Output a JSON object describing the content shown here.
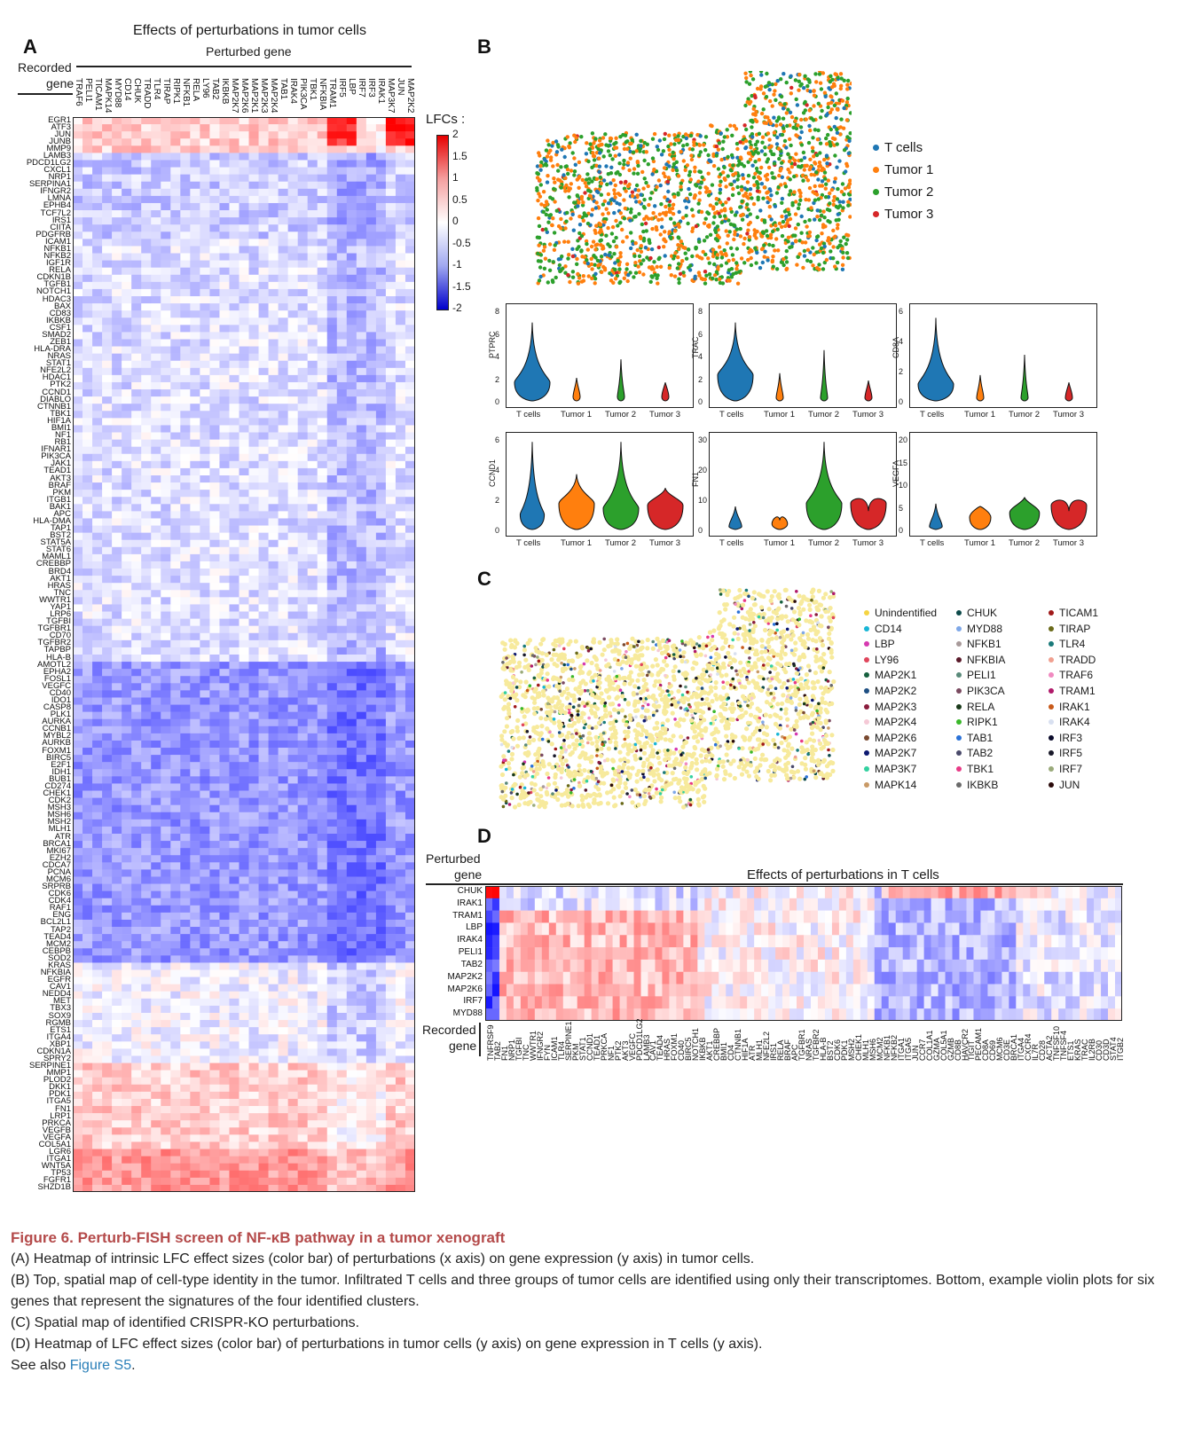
{
  "panels": {
    "A": "A",
    "B": "B",
    "C": "C",
    "D": "D"
  },
  "panel_a": {
    "title": "Effects of perturbations in tumor cells",
    "subtitle": "Perturbed gene",
    "recorded_label_1": "Recorded",
    "recorded_label_2": "gene",
    "colorbar_title": "LFCs :",
    "colorbar_ticks": [
      "2",
      "1.5",
      "1",
      "0.5",
      "0",
      "-0.5",
      "-1",
      "-1.5",
      "-2"
    ],
    "columns": [
      "TRAF6",
      "PELI1",
      "TICAM1",
      "MAPK14",
      "MYD88",
      "CD14",
      "CHUK",
      "TRADD",
      "TLR4",
      "TIRAP",
      "RIPK1",
      "NFKB1",
      "RELA",
      "LY96",
      "TAB2",
      "IKBKB",
      "MAP2K7",
      "MAP2K6",
      "MAP2K1",
      "MAP2K3",
      "MAP2K4",
      "TAB1",
      "IRAK4",
      "PIK3CA",
      "TBK1",
      "NFKBIA",
      "TRAM1",
      "IRF5",
      "LBP",
      "IRF7",
      "IRF3",
      "IRAK1",
      "MAP3K7",
      "JUN",
      "MAP2K2"
    ],
    "rows": [
      "EGR1",
      "ATF3",
      "JUN",
      "JUNB",
      "MMP9",
      "LAMB3",
      "PDCD1LG2",
      "CXCL1",
      "NRP1",
      "SERPINA1",
      "IFNGR2",
      "LMNA",
      "EPHB4",
      "TCF7L2",
      "IRS1",
      "CIITA",
      "PDGFRB",
      "ICAM1",
      "NFKB1",
      "NFKB2",
      "IGF1R",
      "RELA",
      "CDKN1B",
      "TGFB1",
      "NOTCH1",
      "HDAC3",
      "BAX",
      "CD83",
      "IKBKB",
      "CSF1",
      "SMAD2",
      "ZEB1",
      "HLA-DRA",
      "NRAS",
      "STAT1",
      "NFE2L2",
      "HDAC1",
      "PTK2",
      "CCND1",
      "DIABLO",
      "CTNNB1",
      "TBK1",
      "HIF1A",
      "BMI1",
      "NF1",
      "RB1",
      "IFNAR1",
      "PIK3CA",
      "JAK1",
      "TEAD1",
      "AKT3",
      "BRAF",
      "PKM",
      "ITGB1",
      "BAK1",
      "APC",
      "HLA-DMA",
      "TAP1",
      "BST2",
      "STAT5A",
      "STAT6",
      "MAML1",
      "CREBBP",
      "BRD4",
      "AKT1",
      "HRAS",
      "TNC",
      "WWTR1",
      "YAP1",
      "LRP6",
      "TGFBI",
      "TGFBR1",
      "CD70",
      "TGFBR2",
      "TAPBP",
      "HLA-B",
      "AMOTL2",
      "EPHA2",
      "FOSL1",
      "VEGFC",
      "CD40",
      "IDO1",
      "CASP8",
      "PLK1",
      "AURKA",
      "CCNB1",
      "MYBL2",
      "AURKB",
      "FOXM1",
      "BIRC5",
      "E2F1",
      "IDH1",
      "BUB1",
      "CD274",
      "CHEK1",
      "CDK2",
      "MSH3",
      "MSH6",
      "MSH2",
      "MLH1",
      "ATR",
      "BRCA1",
      "MKI67",
      "EZH2",
      "CDCA7",
      "PCNA",
      "MCM6",
      "SRPRB",
      "CDK6",
      "CDK4",
      "RAF1",
      "ENG",
      "BCL2L1",
      "TAP2",
      "TEAD4",
      "MCM2",
      "CEBPB",
      "SOD2",
      "KRAS",
      "NFKBIA",
      "EGFR",
      "CAV1",
      "NEDD4",
      "MET",
      "TBX3",
      "SOX9",
      "RGMB",
      "ETS1",
      "ITGA4",
      "XBP1",
      "CDKN1A",
      "SPRY2",
      "SERPINE1",
      "MMP1",
      "PLOD2",
      "DKK1",
      "PDK1",
      "ITGA5",
      "FN1",
      "LRP1",
      "PRKCA",
      "VEGFB",
      "VEGFA",
      "COL5A1",
      "LGR6",
      "ITGA1",
      "WNT5A",
      "TP53",
      "FGFR1",
      "SHZD1B"
    ]
  },
  "panel_b": {
    "legend": [
      {
        "label": "T cells",
        "color": "#1f77b4"
      },
      {
        "label": "Tumor 1",
        "color": "#ff7f0e"
      },
      {
        "label": "Tumor 2",
        "color": "#2ca02c"
      },
      {
        "label": "Tumor 3",
        "color": "#d62728"
      }
    ],
    "violins": [
      {
        "gene": "PTPRC",
        "yticks": [
          "8",
          "6",
          "4",
          "2",
          "0"
        ],
        "groups": [
          "T cells",
          "Tumor 1",
          "Tumor 2",
          "Tumor 3"
        ]
      },
      {
        "gene": "TRAC",
        "yticks": [
          "8",
          "6",
          "4",
          "2",
          "0"
        ],
        "groups": [
          "T cells",
          "Tumor 1",
          "Tumor 2",
          "Tumor 3"
        ]
      },
      {
        "gene": "CD8A",
        "yticks": [
          "6",
          "4",
          "2",
          "0"
        ],
        "groups": [
          "T cells",
          "Tumor 1",
          "Tumor 2",
          "Tumor 3"
        ]
      },
      {
        "gene": "CCND1",
        "yticks": [
          "6",
          "4",
          "2",
          "0"
        ],
        "groups": [
          "T cells",
          "Tumor 1",
          "Tumor 2",
          "Tumor 3"
        ]
      },
      {
        "gene": "FN1",
        "yticks": [
          "30",
          "20",
          "10",
          "0"
        ],
        "groups": [
          "T cells",
          "Tumor 1",
          "Tumor 2",
          "Tumor 3"
        ]
      },
      {
        "gene": "VEGFA",
        "yticks": [
          "20",
          "15",
          "10",
          "5",
          "0"
        ],
        "groups": [
          "T cells",
          "Tumor 1",
          "Tumor 2",
          "Tumor 3"
        ]
      }
    ]
  },
  "panel_c": {
    "legend": [
      {
        "label": "Unindentified",
        "color": "#f5d442"
      },
      {
        "label": "CD14",
        "color": "#18b6d6"
      },
      {
        "label": "LBP",
        "color": "#d63ab0"
      },
      {
        "label": "LY96",
        "color": "#e0465c"
      },
      {
        "label": "MAP2K1",
        "color": "#16603e"
      },
      {
        "label": "MAP2K2",
        "color": "#1e4f83"
      },
      {
        "label": "MAP2K3",
        "color": "#8a1c3c"
      },
      {
        "label": "MAP2K4",
        "color": "#f5c9d6"
      },
      {
        "label": "MAP2K6",
        "color": "#7a4a30"
      },
      {
        "label": "MAP2K7",
        "color": "#0c1870"
      },
      {
        "label": "MAP3K7",
        "color": "#33d1a0"
      },
      {
        "label": "MAPK14",
        "color": "#c99a66"
      },
      {
        "label": "CHUK",
        "color": "#0d4a4a"
      },
      {
        "label": "MYD88",
        "color": "#7fa8e8"
      },
      {
        "label": "NFKB1",
        "color": "#a89a9a"
      },
      {
        "label": "NFKBIA",
        "color": "#5a1a2a"
      },
      {
        "label": "PELI1",
        "color": "#5a8a7a"
      },
      {
        "label": "PIK3CA",
        "color": "#7a4a60"
      },
      {
        "label": "RELA",
        "color": "#1a3a1a"
      },
      {
        "label": "RIPK1",
        "color": "#3ab82a"
      },
      {
        "label": "TAB1",
        "color": "#2a72d8"
      },
      {
        "label": "TAB2",
        "color": "#4a4a6a"
      },
      {
        "label": "TBK1",
        "color": "#e83a86"
      },
      {
        "label": "IKBKB",
        "color": "#6a6a6a"
      },
      {
        "label": "TICAM1",
        "color": "#a01a1a"
      },
      {
        "label": "TIRAP",
        "color": "#6a6a1a"
      },
      {
        "label": "TLR4",
        "color": "#1a7a7a"
      },
      {
        "label": "TRADD",
        "color": "#f0a090"
      },
      {
        "label": "TRAF6",
        "color": "#f08ac0"
      },
      {
        "label": "TRAM1",
        "color": "#b01a6a"
      },
      {
        "label": "IRAK1",
        "color": "#c85a1a"
      },
      {
        "label": "IRAK4",
        "color": "#d8e0f0"
      },
      {
        "label": "IRF3",
        "color": "#0a0a2a"
      },
      {
        "label": "IRF5",
        "color": "#1a1a2a"
      },
      {
        "label": "IRF7",
        "color": "#9aaa7a"
      },
      {
        "label": "JUN",
        "color": "#2a0a0a"
      }
    ]
  },
  "panel_d": {
    "perturbed_label_1": "Perturbed",
    "perturbed_label_2": "gene",
    "title": "Effects of perturbations in T cells",
    "recorded_label_1": "Recorded",
    "recorded_label_2": "gene",
    "rows": [
      "CHUK",
      "IRAK1",
      "TRAM1",
      "LBP",
      "IRAK4",
      "PELI1",
      "TAB2",
      "MAP2K2",
      "MAP2K6",
      "IRF7",
      "MYD88"
    ],
    "columns": [
      "TNFRSF9",
      "TAB2",
      "FN1",
      "NRP1",
      "TGFBI",
      "TNC",
      "WWTR1",
      "IFNGR2",
      "FYN",
      "ICAM1",
      "TLR4",
      "SERPINE1",
      "PKM",
      "STAT1",
      "CCND1",
      "TEAD1",
      "PRKCA",
      "NF1",
      "PTK2",
      "AKT3",
      "VEGFC",
      "PDCD1LG2",
      "LAMB3",
      "CAV1",
      "TEAD4",
      "HRAS",
      "FOXM1",
      "CD40",
      "BIRC5",
      "NOTCH1",
      "IKBKB",
      "AKT1",
      "CREBBP",
      "BMI1",
      "CD4",
      "CTNNB1",
      "HIF1A",
      "ATR",
      "MLH1",
      "NFE2L2",
      "IRS1",
      "RELA",
      "BRAF",
      "APC",
      "TGFBR1",
      "NRAS",
      "TGFBR2",
      "HLA-B",
      "BST2",
      "CDK6",
      "PDK1",
      "MSH2",
      "CHEK1",
      "MLH1",
      "MSH6",
      "MCM2",
      "NFKB1",
      "NFKB2",
      "ITGA1",
      "ITGA5",
      "JUN",
      "CCR7",
      "COL1A1",
      "GZMA",
      "COL5A1",
      "GZMB",
      "CD8B",
      "HAVCR2",
      "TIGIT",
      "PECAM1",
      "CD8A",
      "CD69",
      "MCM6",
      "CD3E",
      "BRCA1",
      "ITGA4",
      "CXCR4",
      "IL7R",
      "CD28",
      "ACTA2",
      "TNFSF10",
      "TNFSF4",
      "ETS1",
      "KRAS",
      "TRAC",
      "IL2RB",
      "CD30",
      "CD3D",
      "STAT4",
      "ITGB2"
    ]
  },
  "caption": {
    "title": "Figure 6. Perturb-FISH screen of NF-κB pathway in a tumor xenograft",
    "a": "(A) Heatmap of intrinsic LFC effect sizes (color bar) of perturbations (x axis) on gene expression (y axis) in tumor cells.",
    "b": "(B) Top, spatial map of cell-type identity in the tumor. Infiltrated T cells and three groups of tumor cells are identified using only their transcriptomes. Bottom, example violin plots for six genes that represent the signatures of the four identified clusters.",
    "c": "(C) Spatial map of identified CRISPR-KO perturbations.",
    "d": "(D) Heatmap of LFC effect sizes (color bar) of perturbations in tumor cells (y axis) on gene expression in T cells (y axis).",
    "see_also_prefix": "See also ",
    "see_also_link": "Figure S5",
    "see_also_suffix": "."
  }
}
